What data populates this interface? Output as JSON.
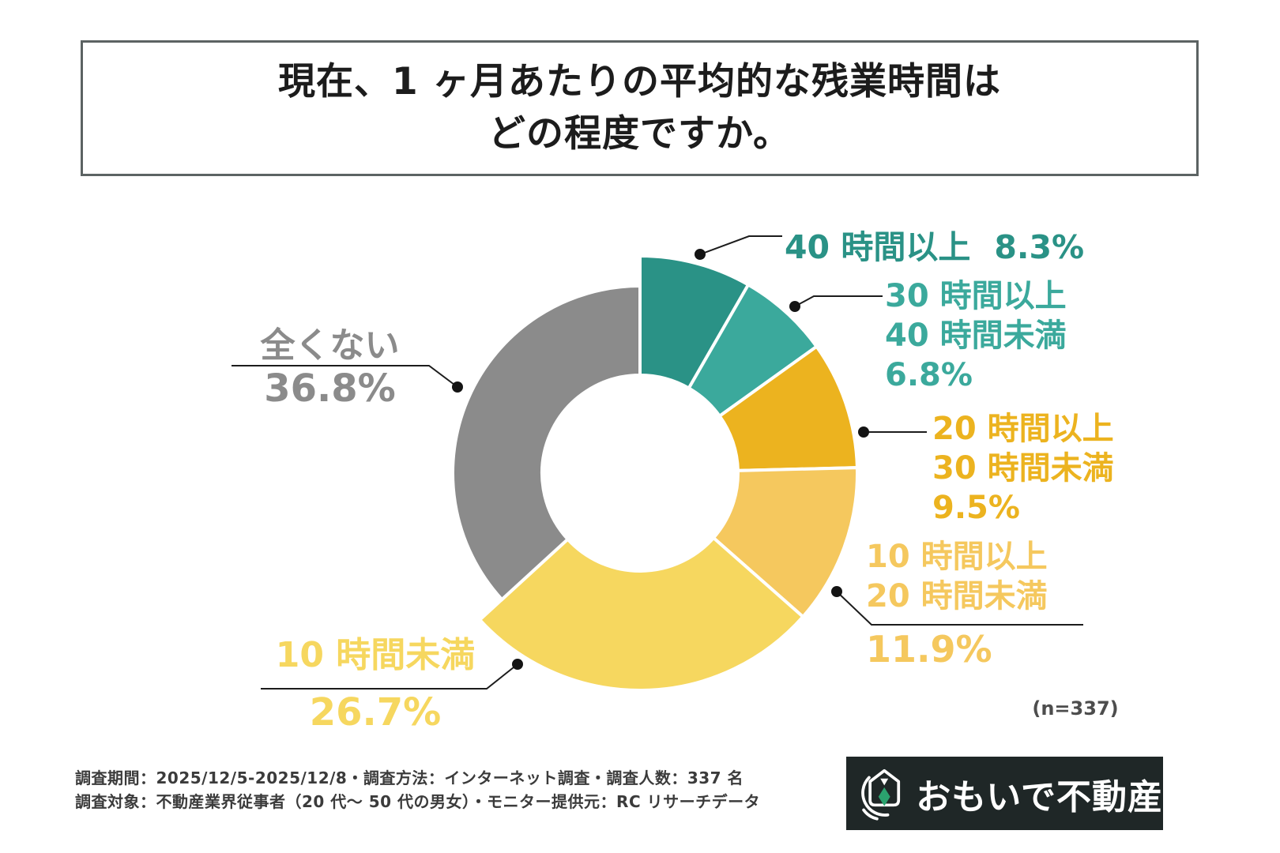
{
  "title": {
    "line1": "現在、1 ヶ月あたりの平均的な残業時間は",
    "line2": "どの程度ですか。"
  },
  "sample_note": "(n=337)",
  "footer": {
    "line1": "調査期間：2025/12/5-2025/12/8・調査方法：インターネット調査・調査人数：337 名",
    "line2": "調査対象：不動産業界従事者（20 代〜 50 代の男女）・モニター提供元：RC リサーチデータ"
  },
  "logo": {
    "text": "おもいで不動産",
    "icon": "house-with-green-diamond-icon",
    "bg_color": "#1F2727",
    "diamond_color": "#2BA26E"
  },
  "labels": {
    "l1": {
      "name": "40 時間以上",
      "pct": "8.3%"
    },
    "l2": {
      "line1": "30 時間以上",
      "line2": "40 時間未満",
      "pct": "6.8%"
    },
    "l3": {
      "line1": "20 時間以上",
      "line2": "30 時間未満",
      "pct": "9.5%"
    },
    "l4": {
      "line1": "10 時間以上",
      "line2": "20 時間未満",
      "pct": "11.9%"
    },
    "l5": {
      "name": "10 時間未満",
      "pct": "26.7%"
    },
    "l6": {
      "name": "全くない",
      "pct": "36.8%"
    }
  },
  "chart_data": {
    "type": "pie",
    "subtype": "donut",
    "unit": "%",
    "start_angle_deg": 0,
    "direction": "clockwise",
    "total": 100.0,
    "sample_size": 337,
    "segments": [
      {
        "label": "40 時間以上",
        "value": 8.3,
        "color": "#2A9286"
      },
      {
        "label": "30 時間以上 40 時間未満",
        "value": 6.8,
        "color": "#3BA99C"
      },
      {
        "label": "20 時間以上 30 時間未満",
        "value": 9.5,
        "color": "#ECB31F"
      },
      {
        "label": "10 時間以上 20 時間未満",
        "value": 11.9,
        "color": "#F5C85E"
      },
      {
        "label": "10 時間未満",
        "value": 26.7,
        "color": "#F6D75F"
      },
      {
        "label": "全くない",
        "value": 36.8,
        "color": "#8B8B8B"
      }
    ]
  }
}
